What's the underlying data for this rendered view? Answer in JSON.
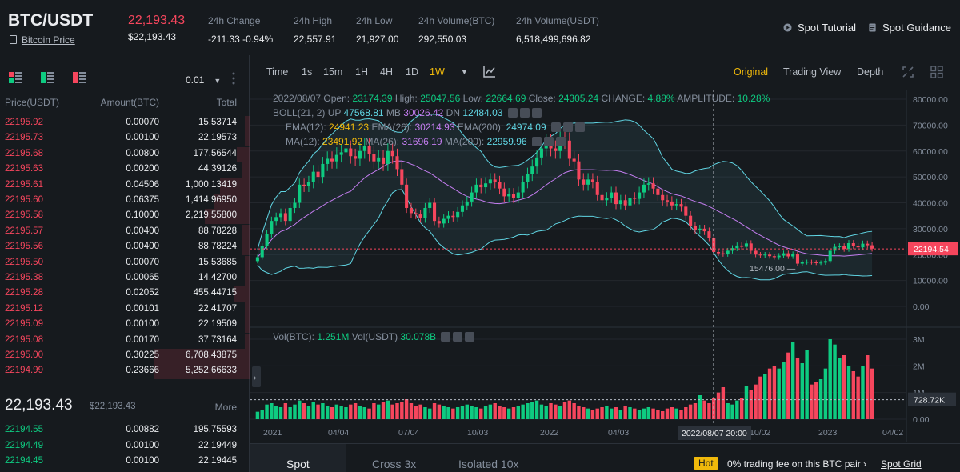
{
  "header": {
    "pair": "BTC/USDT",
    "coin_link": "Bitcoin Price",
    "last_price": "22,193.43",
    "last_price_usd": "$22,193.43",
    "stats": [
      {
        "label": "24h Change",
        "value": "-211.33 -0.94%",
        "color": "#f6465d"
      },
      {
        "label": "24h High",
        "value": "22,557.91",
        "color": "#eaecef"
      },
      {
        "label": "24h Low",
        "value": "21,927.00",
        "color": "#eaecef"
      },
      {
        "label": "24h Volume(BTC)",
        "value": "292,550.03",
        "color": "#eaecef"
      },
      {
        "label": "24h Volume(USDT)",
        "value": "6,518,499,696.82",
        "color": "#eaecef"
      }
    ],
    "links": {
      "tutorial": "Spot Tutorial",
      "guidance": "Spot Guidance"
    }
  },
  "orderbook": {
    "precision": "0.01",
    "columns": {
      "price": "Price(USDT)",
      "amount": "Amount(BTC)",
      "total": "Total"
    },
    "asks": [
      {
        "price": "22195.92",
        "amount": "0.00070",
        "total": "15.53714",
        "depth": 0.02
      },
      {
        "price": "22195.73",
        "amount": "0.00100",
        "total": "22.19573",
        "depth": 0.02
      },
      {
        "price": "22195.68",
        "amount": "0.00800",
        "total": "177.56544",
        "depth": 0.05
      },
      {
        "price": "22195.63",
        "amount": "0.00200",
        "total": "44.39126",
        "depth": 0.03
      },
      {
        "price": "22195.61",
        "amount": "0.04506",
        "total": "1,000.13419",
        "depth": 0.12
      },
      {
        "price": "22195.60",
        "amount": "0.06375",
        "total": "1,414.96950",
        "depth": 0.14
      },
      {
        "price": "22195.58",
        "amount": "0.10000",
        "total": "2,219.55800",
        "depth": 0.18
      },
      {
        "price": "22195.57",
        "amount": "0.00400",
        "total": "88.78228",
        "depth": 0.03
      },
      {
        "price": "22195.56",
        "amount": "0.00400",
        "total": "88.78224",
        "depth": 0.03
      },
      {
        "price": "22195.50",
        "amount": "0.00070",
        "total": "15.53685",
        "depth": 0.02
      },
      {
        "price": "22195.38",
        "amount": "0.00065",
        "total": "14.42700",
        "depth": 0.02
      },
      {
        "price": "22195.28",
        "amount": "0.02052",
        "total": "455.44715",
        "depth": 0.06
      },
      {
        "price": "22195.12",
        "amount": "0.00101",
        "total": "22.41707",
        "depth": 0.02
      },
      {
        "price": "22195.09",
        "amount": "0.00100",
        "total": "22.19509",
        "depth": 0.02
      },
      {
        "price": "22195.08",
        "amount": "0.00170",
        "total": "37.73164",
        "depth": 0.02
      },
      {
        "price": "22195.00",
        "amount": "0.30225",
        "total": "6,708.43875",
        "depth": 0.38
      },
      {
        "price": "22194.99",
        "amount": "0.23666",
        "total": "5,252.66633",
        "depth": 0.38
      }
    ],
    "mid": {
      "price": "22,193.43",
      "usd": "$22,193.43",
      "more": "More"
    },
    "bids": [
      {
        "price": "22194.55",
        "amount": "0.00882",
        "total": "195.75593"
      },
      {
        "price": "22194.49",
        "amount": "0.00100",
        "total": "22.19449"
      },
      {
        "price": "22194.45",
        "amount": "0.00100",
        "total": "22.19445"
      }
    ]
  },
  "toolbar": {
    "intervals": [
      "Time",
      "1s",
      "15m",
      "1H",
      "4H",
      "1D",
      "1W"
    ],
    "active_interval": "1W",
    "views": [
      "Original",
      "Trading View",
      "Depth"
    ],
    "active_view": "Original"
  },
  "legend": {
    "ohlc": {
      "date": "2022/08/07",
      "open_label": "Open:",
      "open": "23174.39",
      "high_label": "High:",
      "high": "25047.56",
      "low_label": "Low:",
      "low": "22664.69",
      "close_label": "Close:",
      "close": "24305.24",
      "change_label": "CHANGE:",
      "change": "4.88%",
      "amplitude_label": "AMPLITUDE:",
      "amplitude": "10.28%"
    },
    "boll": {
      "label": "BOLL(21, 2)",
      "up_label": "UP",
      "up": "47568.81",
      "mb_label": "MB",
      "mb": "30026.42",
      "dn_label": "DN",
      "dn": "12484.03"
    },
    "ema": {
      "ema12_label": "EMA(12):",
      "ema12": "24941.23",
      "ema26_label": "EMA(26):",
      "ema26": "30214.93",
      "ema200_label": "EMA(200):",
      "ema200": "24974.09"
    },
    "ma": {
      "ma12_label": "MA(12):",
      "ma12": "23491.92",
      "ma26_label": "MA(26):",
      "ma26": "31696.19",
      "ma200_label": "MA(200):",
      "ma200": "22959.96"
    },
    "vol": {
      "btc_label": "Vol(BTC):",
      "btc": "1.251M",
      "usdt_label": "Vol(USDT)",
      "usdt": "30.078B"
    }
  },
  "chart_data": {
    "type": "candlestick",
    "price_axis": {
      "ticks": [
        "80000.00",
        "70000.00",
        "60000.00",
        "50000.00",
        "40000.00",
        "30000.00",
        "20000.00",
        "10000.00",
        "0.00"
      ],
      "ylim": [
        0,
        80000
      ]
    },
    "volume_axis": {
      "ticks": [
        "3M",
        "2M",
        "1M",
        "0.00"
      ],
      "ylim": [
        0,
        3000000
      ]
    },
    "x_ticks": [
      "2021",
      "04/04",
      "07/04",
      "10/03",
      "2022",
      "04/03",
      "07/03",
      "10/02",
      "2023",
      "04/02"
    ],
    "current_price_label": "22194.54",
    "current_volume_label": "728.72K",
    "crosshair_label": "2022/08/07 20:00",
    "low_marker": "15476.00",
    "closes": [
      19000,
      23200,
      28000,
      33000,
      34500,
      36000,
      33000,
      38000,
      40000,
      47000,
      46500,
      48000,
      52000,
      50000,
      55000,
      57000,
      56000,
      58500,
      59500,
      61000,
      58000,
      57000,
      60000,
      62000,
      59000,
      56000,
      57500,
      55000,
      60000,
      58000,
      53000,
      47000,
      38000,
      36000,
      35500,
      34000,
      38000,
      40000,
      33000,
      32000,
      33800,
      35000,
      34500,
      36500,
      39000,
      40500,
      44000,
      47000,
      46000,
      47500,
      49000,
      48000,
      45500,
      42500,
      43500,
      42000,
      44000,
      48000,
      51000,
      54000,
      57500,
      61000,
      63500,
      61000,
      60000,
      65000,
      64000,
      57000,
      56000,
      49000,
      47000,
      49000,
      48000,
      43000,
      41000,
      42000,
      44000,
      39500,
      41000,
      39000,
      42000,
      41500,
      44000,
      47000,
      47500,
      45500,
      43000,
      41000,
      40500,
      39000,
      39500,
      38500,
      35000,
      31000,
      29500,
      30000,
      29000,
      26500,
      21000,
      20500,
      20200,
      21500,
      22500,
      23500,
      23000,
      24300,
      21500,
      20000,
      19800,
      20000,
      19400,
      19000,
      19600,
      20500,
      19300,
      20200,
      16500,
      17000,
      17200,
      17000,
      16800,
      16900,
      17500,
      21500,
      23000,
      23200,
      22200,
      24400,
      23300,
      22800,
      24200,
      23600,
      22300
    ],
    "volumes_m": [
      0.28,
      0.35,
      0.55,
      0.6,
      0.5,
      0.45,
      0.6,
      0.45,
      0.55,
      0.7,
      0.6,
      0.5,
      0.65,
      0.55,
      0.6,
      0.5,
      0.45,
      0.55,
      0.5,
      0.45,
      0.55,
      0.6,
      0.5,
      0.45,
      0.4,
      0.6,
      0.55,
      0.65,
      0.7,
      0.55,
      0.6,
      0.65,
      0.75,
      0.6,
      0.5,
      0.55,
      0.45,
      0.4,
      0.6,
      0.55,
      0.5,
      0.45,
      0.4,
      0.45,
      0.5,
      0.55,
      0.5,
      0.45,
      0.4,
      0.5,
      0.55,
      0.6,
      0.5,
      0.45,
      0.4,
      0.45,
      0.5,
      0.55,
      0.6,
      0.65,
      0.7,
      0.55,
      0.5,
      0.6,
      0.55,
      0.5,
      0.65,
      0.7,
      0.6,
      0.5,
      0.45,
      0.4,
      0.35,
      0.4,
      0.45,
      0.5,
      0.4,
      0.45,
      0.35,
      0.5,
      0.45,
      0.4,
      0.35,
      0.4,
      0.45,
      0.4,
      0.35,
      0.3,
      0.4,
      0.45,
      0.4,
      0.35,
      0.45,
      0.55,
      0.6,
      0.9,
      0.7,
      0.6,
      0.8,
      1.0,
      1.2,
      0.6,
      0.55,
      0.7,
      0.8,
      1.25,
      1.1,
      1.3,
      1.6,
      1.7,
      1.9,
      2.0,
      1.9,
      2.15,
      2.5,
      2.9,
      2.3,
      2.1,
      2.6,
      1.3,
      1.4,
      1.5,
      1.9,
      3.0,
      2.8,
      2.3,
      2.4,
      2.0,
      1.8,
      1.6,
      2.0,
      2.4,
      1.9,
      2.5,
      2.2,
      0.8
    ]
  }
}
